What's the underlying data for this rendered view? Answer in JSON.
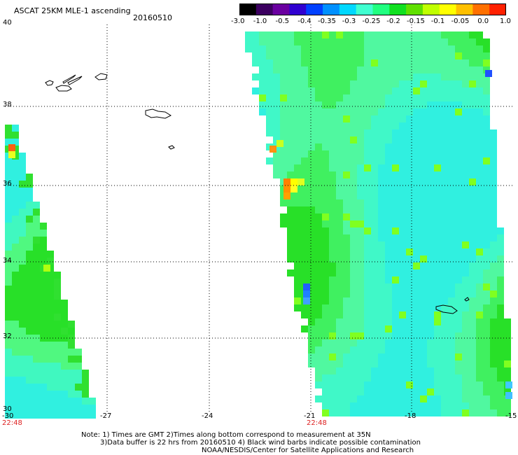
{
  "header": {
    "title": "ASCAT 25KM MLE-1 ascending",
    "date": "20160510"
  },
  "colorbar": {
    "labels": [
      "-3.0",
      "-1.0",
      "-0.5",
      "-0.4",
      "-0.35",
      "-0.3",
      "-0.25",
      "-0.2",
      "-0.15",
      "-0.1",
      "-0.05",
      "0.0",
      "1.0"
    ],
    "colors": [
      "#000000",
      "#3c0060",
      "#6a00a0",
      "#3000d0",
      "#0040ff",
      "#0090ff",
      "#00d8ff",
      "#40ffd0",
      "#20ff80",
      "#10e020",
      "#60e000",
      "#c0ff00",
      "#ffff00",
      "#ffc000",
      "#ff7000",
      "#ff2000"
    ]
  },
  "map": {
    "x_axis": {
      "labels": [
        "-30",
        "-27",
        "-24",
        "-21",
        "-18",
        "-15"
      ]
    },
    "y_axis": {
      "labels": [
        "40",
        "38",
        "36",
        "34",
        "32",
        "30"
      ]
    },
    "pass_times": [
      "22:48",
      "22:48"
    ]
  },
  "notes": {
    "line1": "Note: 1) Times are GMT 2)Times along bottom correspond to measurement at 35N",
    "line2": "3)Data buffer is 22 hrs from 20160510 4) Black wind barbs indicate possible contamination",
    "line3": "NOAA/NESDIS/Center for Satellite Applications and Research"
  }
}
